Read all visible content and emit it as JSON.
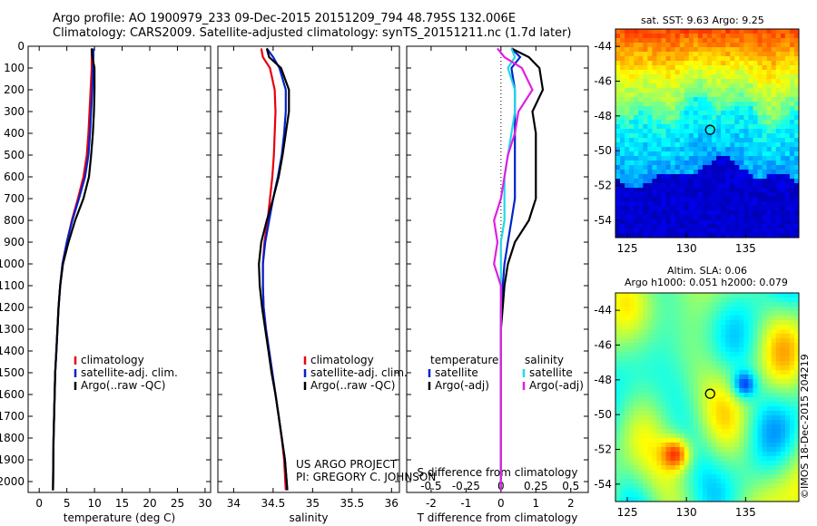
{
  "header": {
    "title_line1": "Argo profile: AO 1900979_233 09-Dec-2015 20151209_794 48.795S 132.006E",
    "title_line2": "Climatology: CARS2009. Satellite-adjusted climatology: synTS_20151211.nc (1.7d later)"
  },
  "credits": {
    "project": "US ARGO PROJECT",
    "pi": "PI: GREGORY C. JOHNSON",
    "imos": "©IMOS 18-Dec-2015 204219"
  },
  "colors": {
    "climatology": "#e8000b",
    "satellite": "#0022cc",
    "argo": "#000000",
    "satellite_salinity": "#22d8e8",
    "argo_salinity_diff": "#e020e0"
  },
  "chart_data": [
    {
      "type": "line",
      "panel": "temperature",
      "xlabel": "temperature (deg C)",
      "xlim": [
        -2,
        31
      ],
      "xticks": [
        "0",
        "5",
        "10",
        "15",
        "20",
        "25",
        "30"
      ],
      "ylim": [
        0,
        2050
      ],
      "yticks": [
        "0",
        "100",
        "200",
        "300",
        "400",
        "500",
        "600",
        "700",
        "800",
        "900",
        "1000",
        "1100",
        "1200",
        "1300",
        "1400",
        "1500",
        "1600",
        "1700",
        "1800",
        "1900",
        "2000"
      ],
      "legend": [
        "climatology",
        "satellite-adj. clim.",
        "Argo(..raw -QC)"
      ],
      "series": [
        {
          "name": "climatology",
          "color": "climatology",
          "x": [
            9.5,
            9.5,
            9.5,
            9.3,
            9.1,
            8.9,
            8.6,
            8.0,
            7.0,
            5.9,
            5.0,
            4.2,
            3.8,
            3.5,
            3.3,
            3.1,
            2.9,
            2.8,
            2.7,
            2.6,
            2.55,
            2.5
          ],
          "y": [
            10,
            50,
            100,
            200,
            300,
            400,
            500,
            600,
            700,
            800,
            900,
            1000,
            1100,
            1200,
            1300,
            1400,
            1500,
            1600,
            1700,
            1800,
            1900,
            2040
          ]
        },
        {
          "name": "satellite-adj. clim.",
          "color": "satellite",
          "x": [
            9.8,
            9.8,
            9.7,
            9.6,
            9.4,
            9.2,
            8.9,
            8.3,
            7.2,
            6.0,
            5.0,
            4.2,
            3.8,
            3.5,
            3.3,
            3.1,
            2.9,
            2.8,
            2.7,
            2.6,
            2.55,
            2.5
          ],
          "y": [
            10,
            50,
            100,
            200,
            300,
            400,
            500,
            600,
            700,
            800,
            900,
            1000,
            1100,
            1200,
            1300,
            1400,
            1500,
            1600,
            1700,
            1800,
            1900,
            2040
          ]
        },
        {
          "name": "Argo(..raw -QC)",
          "color": "argo",
          "x": [
            9.5,
            9.6,
            10.0,
            10.0,
            9.9,
            9.7,
            9.4,
            9.0,
            8.0,
            6.5,
            5.3,
            4.3,
            3.8,
            3.5,
            3.3,
            3.1,
            2.9,
            2.8,
            2.7,
            2.6,
            2.55,
            2.5
          ],
          "y": [
            10,
            50,
            100,
            200,
            300,
            400,
            500,
            600,
            700,
            800,
            900,
            1000,
            1100,
            1200,
            1300,
            1400,
            1500,
            1600,
            1700,
            1800,
            1900,
            2040
          ]
        }
      ]
    },
    {
      "type": "line",
      "panel": "salinity",
      "xlabel": "salinity",
      "xlim": [
        33.8,
        36.1
      ],
      "xticks": [
        "34",
        "34.5",
        "35",
        "35.5",
        "36"
      ],
      "ylim": [
        0,
        2050
      ],
      "legend": [
        "climatology",
        "satellite-adj. clim.",
        "Argo(..raw -QC)"
      ],
      "series": [
        {
          "name": "climatology",
          "color": "climatology",
          "x": [
            34.35,
            34.37,
            34.46,
            34.52,
            34.53,
            34.52,
            34.51,
            34.49,
            34.46,
            34.43,
            34.39,
            34.37,
            34.37,
            34.38,
            34.41,
            34.45,
            34.49,
            34.53,
            34.57,
            34.61,
            34.64,
            34.66
          ],
          "y": [
            10,
            50,
            100,
            200,
            300,
            400,
            500,
            600,
            700,
            800,
            900,
            1000,
            1100,
            1200,
            1300,
            1400,
            1500,
            1600,
            1700,
            1800,
            1900,
            2040
          ]
        },
        {
          "name": "satellite-adj. clim.",
          "color": "satellite",
          "x": [
            34.42,
            34.5,
            34.58,
            34.66,
            34.66,
            34.64,
            34.61,
            34.56,
            34.5,
            34.45,
            34.4,
            34.37,
            34.37,
            34.38,
            34.41,
            34.45,
            34.49,
            34.53,
            34.57,
            34.61,
            34.65,
            34.68
          ],
          "y": [
            10,
            50,
            100,
            200,
            300,
            400,
            500,
            600,
            700,
            800,
            900,
            1000,
            1100,
            1200,
            1300,
            1400,
            1500,
            1600,
            1700,
            1800,
            1900,
            2040
          ]
        },
        {
          "name": "Argo(..raw -QC)",
          "color": "argo",
          "x": [
            34.42,
            34.45,
            34.6,
            34.7,
            34.7,
            34.66,
            34.62,
            34.57,
            34.5,
            34.42,
            34.35,
            34.32,
            34.33,
            34.36,
            34.4,
            34.44,
            34.48,
            34.53,
            34.57,
            34.61,
            34.65,
            34.68
          ],
          "y": [
            10,
            50,
            100,
            200,
            300,
            400,
            500,
            600,
            700,
            800,
            900,
            1000,
            1100,
            1200,
            1300,
            1400,
            1500,
            1600,
            1700,
            1800,
            1900,
            2040
          ]
        }
      ]
    },
    {
      "type": "line",
      "panel": "difference",
      "xlabel": "T difference from climatology",
      "xlabel_top": "S difference from climatology",
      "xlim": [
        -2.7,
        2.5
      ],
      "xticks": [
        "-2",
        "-1",
        "0",
        "1",
        "2"
      ],
      "xticks_S": [
        "-0.5",
        "-0.25",
        "0",
        "0.25",
        "0.5"
      ],
      "ylim": [
        0,
        2050
      ],
      "legend_temperature_title": "temperature",
      "legend_salinity_title": "salinity",
      "legend_temperature": [
        "satellite",
        "Argo(-adj)"
      ],
      "legend_salinity": [
        "satellite",
        "Argo(-adj)"
      ],
      "series": [
        {
          "name": "temperature satellite",
          "color": "satellite",
          "x": [
            0.3,
            0.55,
            0.3,
            0.4,
            0.4,
            0.4,
            0.4,
            0.4,
            0.4,
            0.3,
            0.2,
            0.1,
            0.05,
            0,
            0,
            0,
            0,
            0,
            0,
            0,
            0,
            0
          ],
          "y": [
            10,
            50,
            100,
            200,
            300,
            400,
            500,
            600,
            700,
            800,
            900,
            1000,
            1100,
            1200,
            1300,
            1400,
            1500,
            1600,
            1700,
            1800,
            1900,
            2040
          ]
        },
        {
          "name": "temperature Argo(-adj)",
          "color": "argo",
          "x": [
            0.3,
            0.8,
            1.1,
            1.2,
            0.9,
            1.0,
            1.0,
            1.0,
            1.0,
            0.8,
            0.4,
            0.2,
            0.1,
            0.05,
            0,
            0,
            0,
            0,
            0,
            0,
            0,
            0
          ],
          "y": [
            10,
            50,
            100,
            200,
            300,
            400,
            500,
            600,
            700,
            800,
            900,
            1000,
            1100,
            1200,
            1300,
            1400,
            1500,
            1600,
            1700,
            1800,
            1900,
            2040
          ]
        },
        {
          "name": "salinity satellite",
          "color": "satellite_salinity",
          "x": [
            0.3,
            0.4,
            0.2,
            0.4,
            0.4,
            0.3,
            0.2,
            0.1,
            0.1,
            0.1,
            0,
            0,
            0,
            0,
            0,
            0,
            0,
            0,
            0,
            0,
            0,
            0
          ],
          "y": [
            10,
            50,
            100,
            200,
            300,
            400,
            500,
            600,
            700,
            800,
            900,
            1000,
            1100,
            1200,
            1300,
            1400,
            1500,
            1600,
            1700,
            1800,
            1900,
            2040
          ]
        },
        {
          "name": "salinity Argo(-adj)",
          "color": "argo_salinity_diff",
          "x": [
            -0.1,
            0.1,
            0.6,
            0.9,
            0.5,
            0.4,
            0.2,
            0.1,
            0.0,
            -0.2,
            -0.1,
            -0.2,
            0,
            0,
            0,
            0,
            0,
            0,
            0,
            0,
            0,
            0
          ],
          "y": [
            10,
            50,
            100,
            200,
            300,
            400,
            500,
            600,
            700,
            800,
            900,
            1000,
            1100,
            1200,
            1300,
            1400,
            1500,
            1600,
            1700,
            1800,
            1900,
            2040
          ]
        }
      ]
    },
    {
      "type": "heatmap",
      "panel": "sat-sst-map",
      "title": "sat. SST: 9.63 Argo: 9.25",
      "xticks": [
        "125",
        "130",
        "135"
      ],
      "yticks": [
        "-44",
        "-46",
        "-48",
        "-50",
        "-52",
        "-54"
      ],
      "xlim": [
        124,
        139.5
      ],
      "ylim": [
        -55,
        -43
      ],
      "marker": {
        "lon": 132.0,
        "lat": -48.8
      }
    },
    {
      "type": "heatmap",
      "panel": "sla-map",
      "title_line1": "Altim. SLA: 0.06",
      "title_line2": "Argo h1000: 0.051 h2000: 0.079",
      "xticks": [
        "125",
        "130",
        "135"
      ],
      "yticks": [
        "-44",
        "-46",
        "-48",
        "-50",
        "-52",
        "-54"
      ],
      "xlim": [
        124,
        139.5
      ],
      "ylim": [
        -55,
        -43
      ],
      "marker": {
        "lon": 132.0,
        "lat": -48.8
      }
    }
  ]
}
